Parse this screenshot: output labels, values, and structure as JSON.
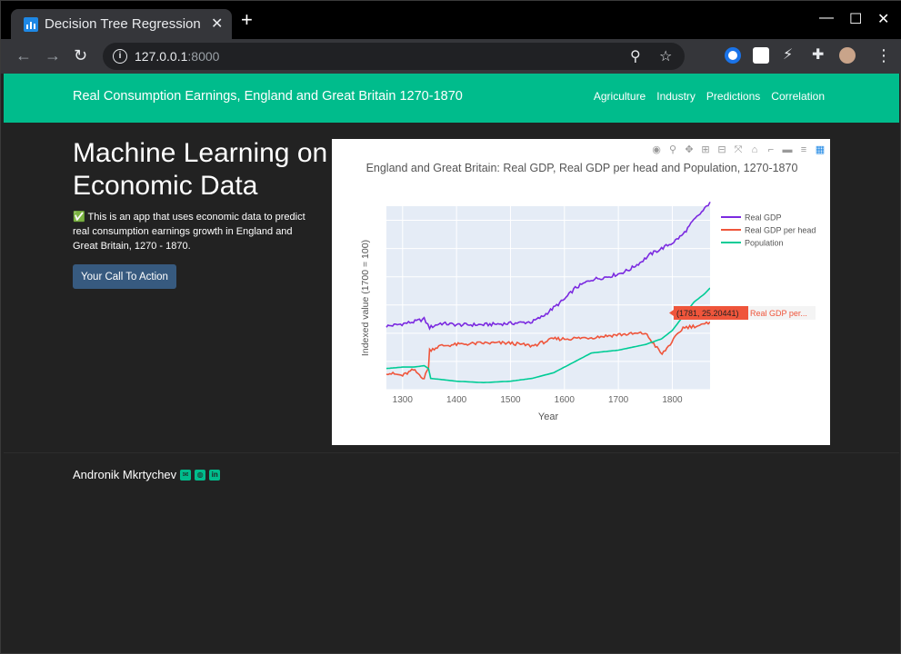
{
  "browser": {
    "tab_title": "Decision Tree Regression",
    "tab_close": "✕",
    "new_tab": "+",
    "url_host": "127.0.0.1",
    "url_port": ":8000"
  },
  "navbar": {
    "brand": "Real Consumption Earnings, England and Great Britain 1270-1870",
    "links": [
      "Agriculture",
      "Industry",
      "Predictions",
      "Correlation"
    ]
  },
  "hero": {
    "title": "Machine Learning on Economic Data",
    "description": "✅ This is an app that uses economic data to predict real consumption earnings growth in England and Great Britain, 1270 - 1870.",
    "cta_label": "Your Call To Action"
  },
  "footer": {
    "author": "Andronik Mkrtychev",
    "icons": [
      "envelope-icon",
      "github-icon",
      "linkedin-icon"
    ]
  },
  "chart_data": {
    "type": "line",
    "title": "England and Great Britain: Real GDP, Real GDP per head and Population, 1270-1870",
    "xlabel": "Year",
    "ylabel": "Indexed value (1700 = 100)",
    "xlim": [
      1270,
      1870
    ],
    "ylim": [
      0,
      130
    ],
    "x_ticks": [
      1300,
      1400,
      1500,
      1600,
      1700,
      1800
    ],
    "grid": true,
    "legend": "top-right",
    "hover_label": "(1781, 25.20441)",
    "hover_series_label": "Real GDP per...",
    "series": [
      {
        "name": "Real GDP",
        "color": "#7b2ae0",
        "x": [
          1270,
          1290,
          1320,
          1340,
          1350,
          1370,
          1400,
          1450,
          1500,
          1540,
          1560,
          1580,
          1600,
          1620,
          1650,
          1680,
          1700,
          1720,
          1740,
          1760,
          1780,
          1800,
          1820,
          1840,
          1860,
          1870
        ],
        "y": [
          45,
          46,
          48,
          50,
          44,
          47,
          46,
          46,
          47,
          48,
          52,
          58,
          64,
          72,
          78,
          80,
          82,
          85,
          90,
          96,
          100,
          104,
          110,
          120,
          128,
          133
        ]
      },
      {
        "name": "Real GDP per head",
        "color": "#ef553b",
        "x": [
          1270,
          1300,
          1320,
          1340,
          1348,
          1350,
          1370,
          1400,
          1450,
          1500,
          1540,
          1580,
          1600,
          1650,
          1700,
          1750,
          1781,
          1820,
          1860,
          1870
        ],
        "y": [
          12,
          10,
          14,
          8,
          16,
          28,
          31,
          32,
          33,
          33,
          31,
          36,
          36,
          37,
          39,
          40,
          25,
          44,
          46,
          48
        ]
      },
      {
        "name": "Population",
        "color": "#00cc96",
        "x": [
          1270,
          1300,
          1320,
          1340,
          1348,
          1352,
          1400,
          1450,
          1500,
          1540,
          1580,
          1600,
          1620,
          1650,
          1700,
          1750,
          1780,
          1800,
          1820,
          1840,
          1860,
          1870
        ],
        "y": [
          15,
          16,
          16,
          17,
          15,
          8,
          6,
          5,
          6,
          8,
          12,
          16,
          20,
          26,
          28,
          32,
          36,
          42,
          52,
          62,
          68,
          72
        ]
      }
    ]
  }
}
